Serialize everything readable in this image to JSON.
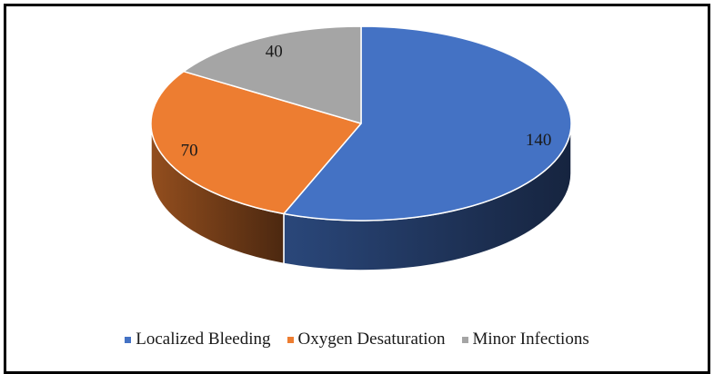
{
  "chart_data": {
    "type": "pie",
    "title": "",
    "categories": [
      "Localized Bleeding",
      "Oxygen Desaturation",
      "Minor Infections"
    ],
    "values": [
      140,
      70,
      40
    ],
    "colors": [
      "#4472C4",
      "#ED7D31",
      "#A5A5A5"
    ],
    "legend_position": "bottom",
    "style": "3d",
    "labels": [
      "140",
      "70",
      "40"
    ]
  }
}
